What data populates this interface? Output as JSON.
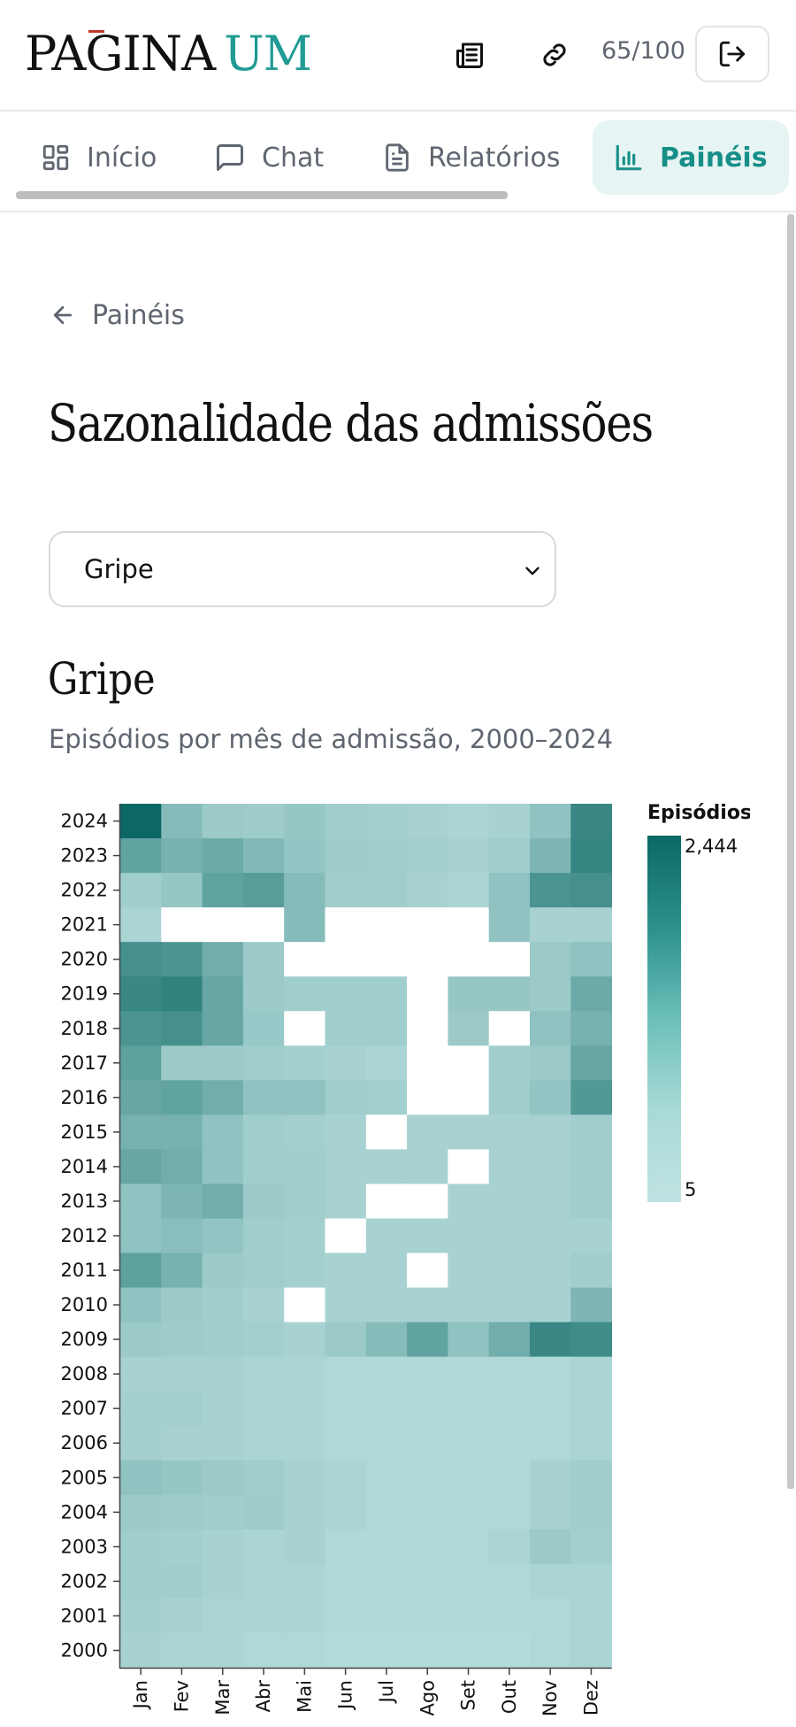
{
  "header": {
    "logo_main": "PAGINA",
    "logo_accent": "UM",
    "credits": "65/100",
    "icons": [
      "newspaper-icon",
      "link-icon",
      "logout-icon"
    ]
  },
  "tabs": [
    {
      "label": "Início",
      "icon": "grid-icon"
    },
    {
      "label": "Chat",
      "icon": "chat-icon"
    },
    {
      "label": "Relatórios",
      "icon": "document-icon"
    },
    {
      "label": "Painéis",
      "icon": "bar-chart-icon",
      "active": true
    }
  ],
  "back_link": "Painéis",
  "page_title": "Sazonalidade das admissões",
  "select": {
    "value": "Gripe"
  },
  "chart_data": {
    "type": "heatmap",
    "title": "Gripe",
    "subtitle": "Episódios por mês de admissão, 2000–2024",
    "x_categories": [
      "Jan",
      "Fev",
      "Mar",
      "Abr",
      "Mai",
      "Jun",
      "Jul",
      "Ago",
      "Set",
      "Out",
      "Nov",
      "Dez"
    ],
    "y_categories": [
      "2024",
      "2023",
      "2022",
      "2021",
      "2020",
      "2019",
      "2018",
      "2017",
      "2016",
      "2015",
      "2014",
      "2013",
      "2012",
      "2011",
      "2010",
      "2009",
      "2008",
      "2007",
      "2006",
      "2005",
      "2004",
      "2003",
      "2002",
      "2001",
      "2000"
    ],
    "values": [
      [
        2444,
        200,
        100,
        90,
        120,
        80,
        70,
        60,
        50,
        60,
        150,
        1150
      ],
      [
        500,
        300,
        400,
        220,
        130,
        90,
        80,
        70,
        60,
        80,
        250,
        1200
      ],
      [
        80,
        120,
        500,
        600,
        200,
        80,
        80,
        60,
        50,
        150,
        800,
        900
      ],
      [
        50,
        null,
        null,
        null,
        200,
        null,
        null,
        null,
        null,
        150,
        60,
        60
      ],
      [
        900,
        800,
        350,
        100,
        null,
        null,
        null,
        null,
        null,
        null,
        100,
        150
      ],
      [
        1100,
        1300,
        450,
        100,
        80,
        80,
        80,
        null,
        120,
        120,
        100,
        400
      ],
      [
        800,
        900,
        450,
        110,
        null,
        80,
        80,
        null,
        100,
        null,
        150,
        300
      ],
      [
        550,
        100,
        100,
        80,
        70,
        60,
        50,
        null,
        null,
        80,
        100,
        450
      ],
      [
        450,
        500,
        350,
        150,
        150,
        80,
        70,
        null,
        null,
        80,
        130,
        700
      ],
      [
        300,
        300,
        150,
        80,
        70,
        60,
        null,
        60,
        60,
        60,
        60,
        80
      ],
      [
        450,
        350,
        150,
        80,
        80,
        60,
        60,
        60,
        null,
        60,
        60,
        80
      ],
      [
        150,
        250,
        350,
        100,
        80,
        60,
        null,
        null,
        60,
        60,
        60,
        80
      ],
      [
        150,
        180,
        140,
        80,
        70,
        null,
        60,
        60,
        60,
        60,
        60,
        60
      ],
      [
        550,
        300,
        100,
        80,
        70,
        60,
        60,
        null,
        60,
        60,
        60,
        80
      ],
      [
        150,
        100,
        80,
        60,
        null,
        60,
        60,
        60,
        60,
        60,
        60,
        250
      ],
      [
        100,
        90,
        80,
        70,
        60,
        100,
        200,
        500,
        150,
        350,
        1100,
        1000
      ],
      [
        60,
        60,
        60,
        50,
        50,
        40,
        40,
        40,
        40,
        40,
        40,
        50
      ],
      [
        70,
        70,
        60,
        50,
        50,
        40,
        40,
        40,
        40,
        40,
        40,
        50
      ],
      [
        70,
        60,
        60,
        50,
        50,
        40,
        40,
        40,
        40,
        40,
        40,
        50
      ],
      [
        150,
        120,
        100,
        80,
        60,
        50,
        40,
        40,
        40,
        40,
        60,
        80
      ],
      [
        100,
        90,
        80,
        90,
        60,
        50,
        40,
        40,
        40,
        40,
        60,
        80
      ],
      [
        80,
        70,
        60,
        50,
        60,
        40,
        40,
        40,
        40,
        50,
        100,
        70
      ],
      [
        80,
        80,
        60,
        50,
        50,
        40,
        40,
        40,
        40,
        40,
        50,
        50
      ],
      [
        70,
        60,
        50,
        50,
        50,
        40,
        40,
        40,
        40,
        40,
        40,
        50
      ],
      [
        60,
        50,
        50,
        40,
        40,
        30,
        30,
        30,
        30,
        30,
        40,
        50
      ]
    ],
    "color_scale": {
      "title": "Episódios",
      "min": 5,
      "max": 2444,
      "min_label": "5",
      "max_label": "2,444",
      "colors": [
        "#bfe3e2",
        "#0b6865"
      ]
    },
    "missing_color": "#ffffff"
  }
}
